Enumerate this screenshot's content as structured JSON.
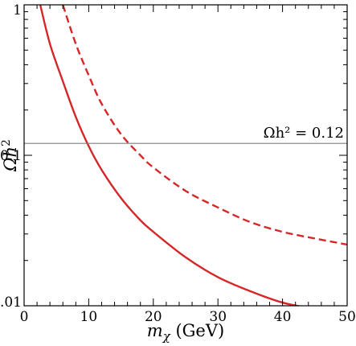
{
  "chart_data": {
    "type": "line",
    "xlabel": "m_χ (GeV)",
    "xlabel_parts": {
      "sym": "m",
      "sub": "χ",
      "unit": "(GeV)"
    },
    "ylabel": "Ωh²",
    "ylabel_parts": {
      "sym": "Ωh",
      "sup": "2"
    },
    "xlim": [
      0,
      50
    ],
    "ylim": [
      0.01,
      1
    ],
    "yscale": "log",
    "grid": false,
    "legend": "none",
    "x_ticks": [
      0,
      10,
      20,
      30,
      40,
      50
    ],
    "x_tick_labels": [
      "0",
      "10",
      "20",
      "30",
      "40",
      "50"
    ],
    "y_ticks": [
      0.01,
      0.1,
      1
    ],
    "y_tick_labels": [
      "0.01",
      "0.1",
      "1"
    ],
    "reference_line": {
      "y": 0.12,
      "color": "#7f7f7f",
      "label": "Ωh² = 0.12"
    },
    "series": [
      {
        "style": "solid",
        "color": "#d62728",
        "x": [
          2.5,
          4,
          6,
          8,
          10,
          12,
          15,
          18,
          20,
          25,
          30,
          35,
          40,
          45
        ],
        "y": [
          1.0,
          0.55,
          0.31,
          0.18,
          0.115,
          0.08,
          0.052,
          0.037,
          0.031,
          0.021,
          0.0155,
          0.0125,
          0.0105,
          0.0095
        ]
      },
      {
        "style": "dashed",
        "color": "#d62728",
        "x": [
          6,
          8,
          10,
          12,
          15,
          18,
          20,
          25,
          30,
          35,
          40,
          45,
          50
        ],
        "y": [
          1.0,
          0.55,
          0.34,
          0.22,
          0.138,
          0.1,
          0.083,
          0.058,
          0.045,
          0.036,
          0.031,
          0.028,
          0.0255
        ]
      }
    ]
  }
}
